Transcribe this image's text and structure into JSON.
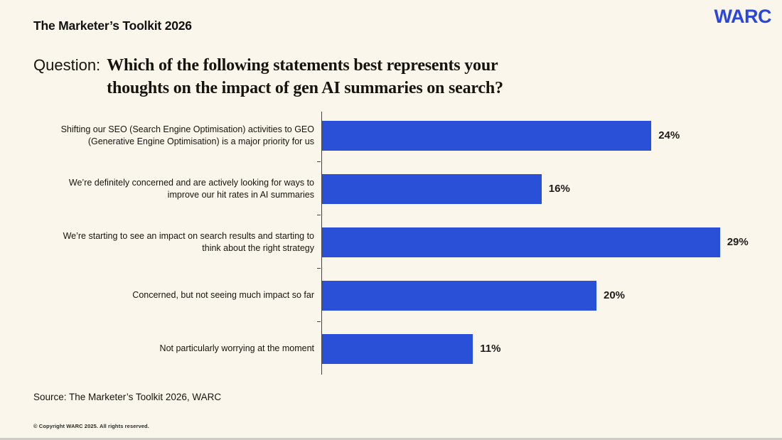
{
  "header": {
    "title": "The Marketer’s Toolkit 2026",
    "brand": "WARC"
  },
  "question": {
    "prefix": "Question:",
    "line1": "Which of the following statements best represents your",
    "line2": "thoughts on the impact of gen AI summaries on search?"
  },
  "chart_data": {
    "type": "bar",
    "orientation": "horizontal",
    "categories": [
      "Shifting our SEO (Search Engine Optimisation) activities to GEO (Generative Engine Optimisation) is a major priority for us",
      "We’re definitely concerned and are actively looking for ways to improve our hit rates in AI summaries",
      "We’re starting to see an impact on search results and starting to think about the right strategy",
      "Concerned, but not seeing much impact so far",
      "Not particularly worrying at the moment"
    ],
    "values": [
      24,
      16,
      29,
      20,
      11
    ],
    "value_labels": [
      "24%",
      "16%",
      "29%",
      "20%",
      "11%"
    ],
    "xlim": [
      0,
      30
    ],
    "grid": false,
    "legend": false
  },
  "footer": {
    "source": "Source: The Marketer’s Toolkit 2026, WARC",
    "copyright": "© Copyright WARC 2025. All rights reserved."
  },
  "colors": {
    "background": "#FAF6EB",
    "bar": "#2B50D8",
    "brand_blue": "#2B46DB",
    "text": "#1A1A1A",
    "axis": "#44423E",
    "bottom_line": "#CDCDC6"
  }
}
